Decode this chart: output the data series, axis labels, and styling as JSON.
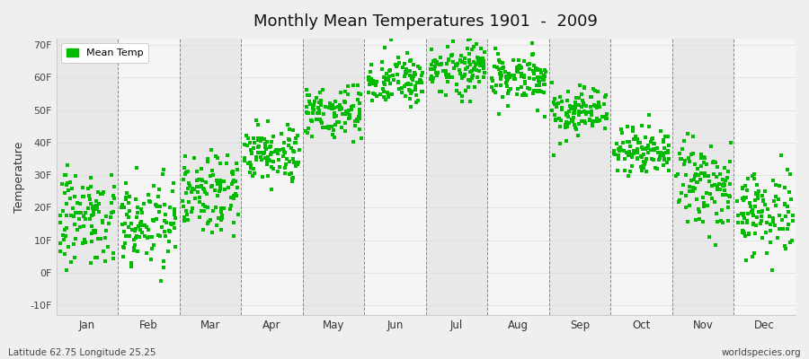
{
  "title": "Monthly Mean Temperatures 1901  -  2009",
  "ylabel": "Temperature",
  "xlabel_bottom_left": "Latitude 62.75 Longitude 25.25",
  "xlabel_bottom_right": "worldspecies.org",
  "dot_color": "#00BB00",
  "background_color": "#EFEFEF",
  "band_colors": [
    "#E8E8E8",
    "#F5F5F5"
  ],
  "yticks": [
    -10,
    0,
    10,
    20,
    30,
    40,
    50,
    60,
    70
  ],
  "ytick_labels": [
    "-10F",
    "0F",
    "10F",
    "20F",
    "30F",
    "40F",
    "50F",
    "60F",
    "70F"
  ],
  "ylim": [
    -13,
    72
  ],
  "months": [
    "Jan",
    "Feb",
    "Mar",
    "Apr",
    "May",
    "Jun",
    "Jul",
    "Aug",
    "Sep",
    "Oct",
    "Nov",
    "Dec"
  ],
  "month_centers": [
    0.5,
    1.5,
    2.5,
    3.5,
    4.5,
    5.5,
    6.5,
    7.5,
    8.5,
    9.5,
    10.5,
    11.5
  ],
  "xlim": [
    0,
    12
  ],
  "mean_F": [
    17,
    16,
    26,
    37,
    50,
    59,
    63,
    60,
    49,
    38,
    27,
    19
  ],
  "std_F": [
    7,
    7,
    6,
    4,
    4,
    4,
    4,
    4,
    4,
    4,
    6,
    7
  ],
  "n_years": 109
}
